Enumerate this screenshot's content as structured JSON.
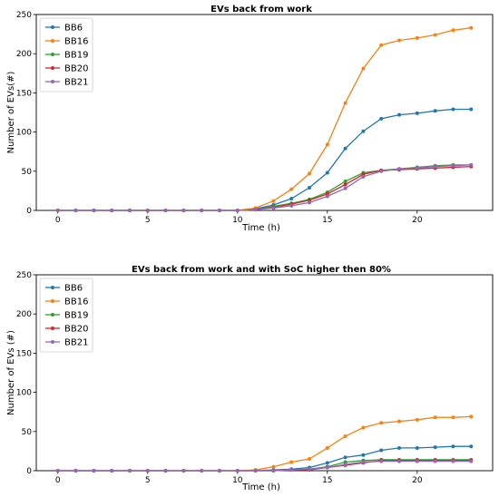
{
  "chart_data": [
    {
      "type": "line",
      "title": "EVs back from work",
      "xlabel": "Time (h)",
      "ylabel": "Number of EVs(#)",
      "xlim": [
        -1.2,
        24.2
      ],
      "ylim": [
        0,
        250
      ],
      "xticks": [
        0,
        5,
        10,
        15,
        20
      ],
      "yticks": [
        0,
        50,
        100,
        150,
        200,
        250
      ],
      "legend_position": "top-left",
      "x": [
        0,
        1,
        2,
        3,
        4,
        5,
        6,
        7,
        8,
        9,
        10,
        11,
        12,
        13,
        14,
        15,
        16,
        17,
        18,
        19,
        20,
        21,
        22,
        23
      ],
      "series": [
        {
          "name": "BB6",
          "color": "#1f77b4",
          "values": [
            0,
            0,
            0,
            0,
            0,
            0,
            0,
            0,
            0,
            0,
            0,
            2,
            7,
            15,
            29,
            48,
            79,
            101,
            117,
            122,
            124,
            127,
            129,
            129
          ]
        },
        {
          "name": "BB16",
          "color": "#ff7f0e",
          "values": [
            0,
            0,
            0,
            0,
            0,
            0,
            0,
            0,
            0,
            0,
            0,
            3,
            12,
            27,
            47,
            84,
            137,
            181,
            211,
            217,
            220,
            224,
            230,
            233
          ]
        },
        {
          "name": "BB19",
          "color": "#2ca02c",
          "values": [
            0,
            0,
            0,
            0,
            0,
            0,
            0,
            0,
            0,
            0,
            0,
            1,
            5,
            9,
            14,
            23,
            37,
            48,
            51,
            53,
            55,
            57,
            58,
            58
          ]
        },
        {
          "name": "BB20",
          "color": "#d62728",
          "values": [
            0,
            0,
            0,
            0,
            0,
            0,
            0,
            0,
            0,
            0,
            0,
            1,
            4,
            8,
            13,
            21,
            33,
            46,
            51,
            52,
            53,
            54,
            55,
            56
          ]
        },
        {
          "name": "BB21",
          "color": "#9467bd",
          "values": [
            0,
            0,
            0,
            0,
            0,
            0,
            0,
            0,
            0,
            0,
            0,
            1,
            3,
            6,
            10,
            18,
            28,
            43,
            50,
            53,
            54,
            56,
            57,
            58
          ]
        }
      ]
    },
    {
      "type": "line",
      "title": "EVs back from work and with SoC higher then 80%",
      "xlabel": "Time (h)",
      "ylabel": "Number of EVs (#)",
      "xlim": [
        -1.2,
        24.2
      ],
      "ylim": [
        0,
        250
      ],
      "xticks": [
        0,
        5,
        10,
        15,
        20
      ],
      "yticks": [
        0,
        50,
        100,
        150,
        200,
        250
      ],
      "legend_position": "top-left",
      "x": [
        0,
        1,
        2,
        3,
        4,
        5,
        6,
        7,
        8,
        9,
        10,
        11,
        12,
        13,
        14,
        15,
        16,
        17,
        18,
        19,
        20,
        21,
        22,
        23
      ],
      "series": [
        {
          "name": "BB6",
          "color": "#1f77b4",
          "values": [
            0,
            0,
            0,
            0,
            0,
            0,
            0,
            0,
            0,
            0,
            0,
            0,
            1,
            2,
            4,
            10,
            17,
            20,
            26,
            29,
            29,
            30,
            31,
            31
          ]
        },
        {
          "name": "BB16",
          "color": "#ff7f0e",
          "values": [
            0,
            0,
            0,
            0,
            0,
            0,
            0,
            0,
            0,
            0,
            0,
            1,
            5,
            11,
            15,
            29,
            44,
            55,
            61,
            63,
            65,
            68,
            68,
            69
          ]
        },
        {
          "name": "BB19",
          "color": "#2ca02c",
          "values": [
            0,
            0,
            0,
            0,
            0,
            0,
            0,
            0,
            0,
            0,
            0,
            0,
            0,
            1,
            2,
            5,
            11,
            13,
            14,
            14,
            14,
            14,
            14,
            14
          ]
        },
        {
          "name": "BB20",
          "color": "#d62728",
          "values": [
            0,
            0,
            0,
            0,
            0,
            0,
            0,
            0,
            0,
            0,
            0,
            0,
            0,
            1,
            1,
            4,
            7,
            10,
            13,
            13,
            13,
            13,
            13,
            13
          ]
        },
        {
          "name": "BB21",
          "color": "#9467bd",
          "values": [
            0,
            0,
            0,
            0,
            0,
            0,
            0,
            0,
            0,
            0,
            0,
            0,
            0,
            1,
            2,
            4,
            8,
            11,
            12,
            12,
            12,
            12,
            12,
            12
          ]
        }
      ]
    }
  ]
}
